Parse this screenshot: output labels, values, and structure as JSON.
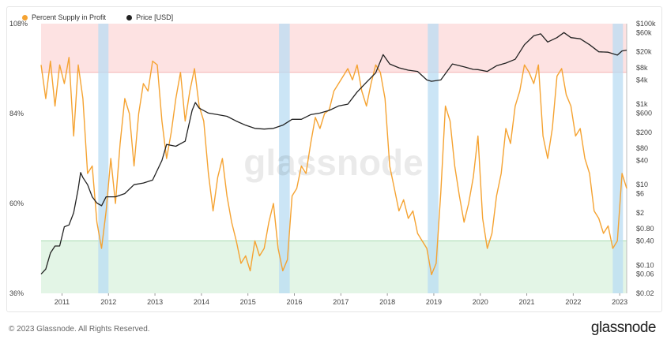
{
  "legend": {
    "supply_label": "Percent Supply in Profit",
    "price_label": "Price [USD]",
    "supply_color": "#f5a332",
    "price_color": "#222222"
  },
  "watermark": "glassnode",
  "footer": {
    "copyright": "© 2023 Glassnode. All Rights Reserved.",
    "logo": "glassnode"
  },
  "chart_data": {
    "type": "line",
    "x_ticks": [
      "2011",
      "2012",
      "2013",
      "2014",
      "2015",
      "2016",
      "2017",
      "2018",
      "2019",
      "2020",
      "2021",
      "2022",
      "2023"
    ],
    "x_range": [
      2010.6,
      2023.2
    ],
    "left_axis": {
      "ticks": [
        "36%",
        "60%",
        "84%",
        "108%"
      ],
      "range": [
        36,
        108
      ]
    },
    "right_axis": {
      "scale": "log",
      "ticks": [
        "$0.02",
        "$0.06",
        "$0.10",
        "$0.40",
        "$0.80",
        "$2",
        "$6",
        "$10",
        "$40",
        "$80",
        "$200",
        "$600",
        "$1k",
        "$4k",
        "$8k",
        "$20k",
        "$60k",
        "$100k"
      ],
      "tick_values": [
        0.02,
        0.06,
        0.1,
        0.4,
        0.8,
        2,
        6,
        10,
        40,
        80,
        200,
        600,
        1000,
        4000,
        8000,
        20000,
        60000,
        100000
      ],
      "range": [
        0.02,
        100000
      ]
    },
    "bands": [
      {
        "name": "high",
        "from": 95,
        "to": 108,
        "color": "#fde2e2"
      },
      {
        "name": "low",
        "from": 36,
        "to": 50,
        "color": "#e3f5e6"
      }
    ],
    "highlight_periods": [
      [
        2011.83,
        2012.05
      ],
      [
        2015.72,
        2015.95
      ],
      [
        2018.92,
        2019.15
      ],
      [
        2022.9,
        2023.12
      ]
    ],
    "series": [
      {
        "name": "Percent Supply in Profit",
        "axis": "left",
        "color": "#f5a332",
        "x": [
          2010.6,
          2010.7,
          2010.8,
          2010.9,
          2011.0,
          2011.1,
          2011.2,
          2011.3,
          2011.4,
          2011.5,
          2011.6,
          2011.7,
          2011.8,
          2011.9,
          2012.0,
          2012.1,
          2012.2,
          2012.3,
          2012.4,
          2012.5,
          2012.6,
          2012.7,
          2012.8,
          2012.9,
          2013.0,
          2013.1,
          2013.2,
          2013.3,
          2013.4,
          2013.5,
          2013.6,
          2013.7,
          2013.8,
          2013.9,
          2014.0,
          2014.1,
          2014.2,
          2014.3,
          2014.4,
          2014.5,
          2014.6,
          2014.7,
          2014.8,
          2014.9,
          2015.0,
          2015.1,
          2015.2,
          2015.3,
          2015.4,
          2015.5,
          2015.6,
          2015.7,
          2015.8,
          2015.9,
          2016.0,
          2016.1,
          2016.2,
          2016.3,
          2016.4,
          2016.5,
          2016.6,
          2016.7,
          2016.8,
          2016.9,
          2017.0,
          2017.1,
          2017.2,
          2017.3,
          2017.4,
          2017.5,
          2017.6,
          2017.7,
          2017.8,
          2017.9,
          2018.0,
          2018.1,
          2018.2,
          2018.3,
          2018.4,
          2018.5,
          2018.6,
          2018.7,
          2018.8,
          2018.9,
          2019.0,
          2019.1,
          2019.2,
          2019.3,
          2019.4,
          2019.5,
          2019.6,
          2019.7,
          2019.8,
          2019.9,
          2020.0,
          2020.1,
          2020.2,
          2020.3,
          2020.4,
          2020.5,
          2020.6,
          2020.7,
          2020.8,
          2020.9,
          2021.0,
          2021.1,
          2021.2,
          2021.3,
          2021.4,
          2021.5,
          2021.6,
          2021.7,
          2021.8,
          2021.9,
          2022.0,
          2022.1,
          2022.2,
          2022.3,
          2022.4,
          2022.5,
          2022.6,
          2022.7,
          2022.8,
          2022.9,
          2023.0,
          2023.1,
          2023.2
        ],
        "values": [
          97,
          88,
          98,
          86,
          97,
          92,
          99,
          78,
          97,
          88,
          68,
          70,
          55,
          48,
          58,
          72,
          60,
          76,
          88,
          84,
          70,
          84,
          92,
          90,
          98,
          97,
          82,
          72,
          79,
          88,
          95,
          82,
          90,
          96,
          86,
          82,
          68,
          58,
          67,
          72,
          62,
          55,
          50,
          44,
          46,
          42,
          50,
          46,
          48,
          55,
          60,
          48,
          42,
          45,
          62,
          64,
          70,
          68,
          76,
          83,
          80,
          84,
          85,
          90,
          92,
          94,
          96,
          93,
          97,
          90,
          86,
          92,
          97,
          95,
          88,
          70,
          64,
          58,
          61,
          56,
          58,
          52,
          50,
          48,
          41,
          44,
          63,
          86,
          82,
          70,
          62,
          55,
          60,
          67,
          78,
          56,
          48,
          52,
          62,
          68,
          80,
          76,
          86,
          90,
          97,
          95,
          92,
          97,
          78,
          72,
          80,
          94,
          96,
          89,
          86,
          78,
          80,
          72,
          68,
          58,
          56,
          52,
          54,
          48,
          50,
          68,
          64
        ]
      },
      {
        "name": "Price [USD]",
        "axis": "right",
        "color": "#222222",
        "x": [
          2010.6,
          2010.7,
          2010.8,
          2010.9,
          2011.0,
          2011.1,
          2011.2,
          2011.3,
          2011.4,
          2011.45,
          2011.5,
          2011.6,
          2011.7,
          2011.8,
          2011.9,
          2012.0,
          2012.2,
          2012.4,
          2012.6,
          2012.8,
          2013.0,
          2013.2,
          2013.3,
          2013.5,
          2013.7,
          2013.85,
          2013.92,
          2014.0,
          2014.2,
          2014.4,
          2014.6,
          2014.8,
          2015.0,
          2015.2,
          2015.4,
          2015.6,
          2015.8,
          2016.0,
          2016.2,
          2016.4,
          2016.6,
          2016.8,
          2017.0,
          2017.2,
          2017.4,
          2017.6,
          2017.8,
          2017.96,
          2018.1,
          2018.3,
          2018.5,
          2018.7,
          2018.9,
          2019.0,
          2019.2,
          2019.45,
          2019.7,
          2019.9,
          2020.0,
          2020.2,
          2020.4,
          2020.6,
          2020.8,
          2021.0,
          2021.2,
          2021.35,
          2021.5,
          2021.7,
          2021.85,
          2022.0,
          2022.2,
          2022.4,
          2022.6,
          2022.8,
          2023.0,
          2023.1,
          2023.2
        ],
        "values": [
          0.06,
          0.08,
          0.2,
          0.3,
          0.3,
          0.9,
          1.0,
          2.0,
          8,
          20,
          15,
          10,
          5,
          3.5,
          3,
          5,
          5,
          6,
          10,
          11,
          13,
          40,
          100,
          90,
          120,
          700,
          1100,
          800,
          600,
          550,
          500,
          380,
          300,
          250,
          240,
          250,
          300,
          420,
          420,
          550,
          600,
          700,
          900,
          1000,
          2000,
          3500,
          6000,
          17000,
          10000,
          8000,
          7000,
          6500,
          4000,
          3700,
          4000,
          10000,
          8500,
          7300,
          7200,
          6500,
          9000,
          10500,
          13000,
          30000,
          50000,
          56000,
          35000,
          45000,
          60000,
          45000,
          42000,
          30000,
          20000,
          19500,
          16500,
          21000,
          22000
        ]
      }
    ]
  }
}
